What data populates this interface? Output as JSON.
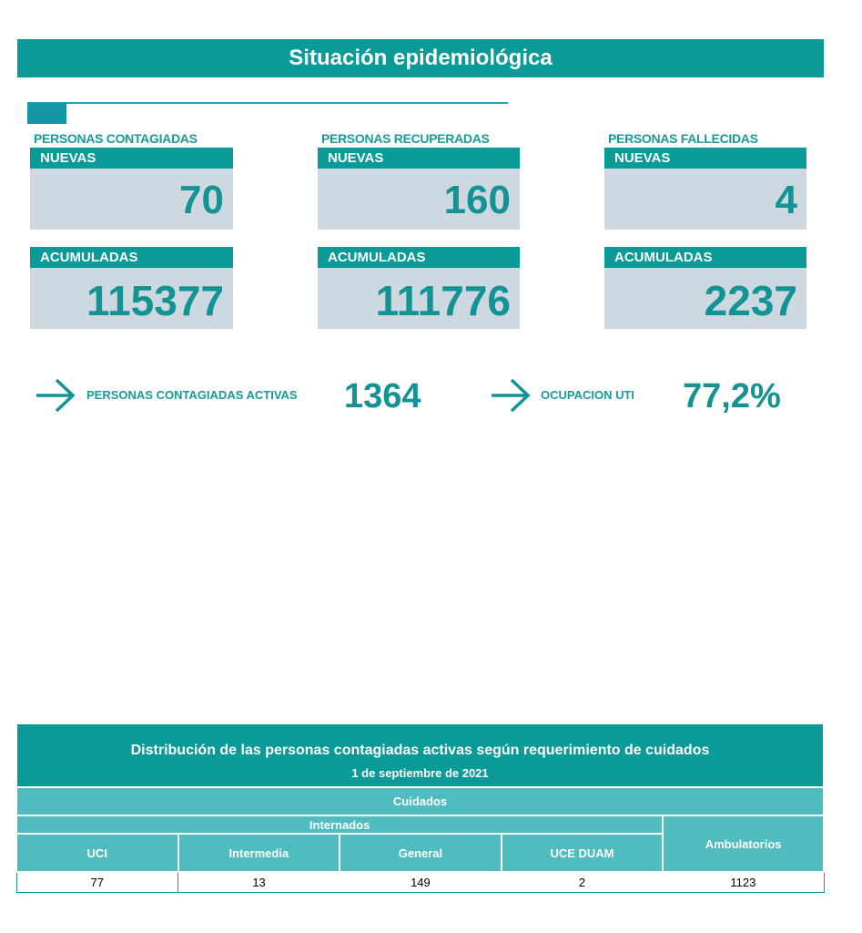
{
  "header": {
    "title": "Situación epidemiológica"
  },
  "columns": [
    {
      "label": "PERSONAS CONTAGIADAS",
      "nuevas_label": "NUEVAS",
      "nuevas": "70",
      "acumuladas_label": "ACUMULADAS",
      "acumuladas": "115377"
    },
    {
      "label": "PERSONAS RECUPERADAS",
      "nuevas_label": "NUEVAS",
      "nuevas": "160",
      "acumuladas_label": "ACUMULADAS",
      "acumuladas": "111776"
    },
    {
      "label": "PERSONAS FALLECIDAS",
      "nuevas_label": "NUEVAS",
      "nuevas": "4",
      "acumuladas_label": "ACUMULADAS",
      "acumuladas": "2237"
    }
  ],
  "summary": {
    "activas_label": "PERSONAS CONTAGIADAS ACTIVAS",
    "activas": "1364",
    "uti_label": "OCUPACION UTI",
    "uti": "77,2%"
  },
  "table": {
    "title": "Distribución de las personas contagiadas activas según requerimiento de cuidados",
    "date": "1 de septiembre de 2021",
    "group": "Cuidados",
    "subgroup": "Internados",
    "headers": [
      "UCI",
      "Intermedia",
      "General",
      "UCE DUAM",
      "Ambulatorios"
    ],
    "values": [
      "77",
      "13",
      "149",
      "2",
      "1123"
    ]
  },
  "colors": {
    "teal": "#0a9a97",
    "light_teal": "#4fbcc0",
    "card": "#cdd8e0"
  }
}
